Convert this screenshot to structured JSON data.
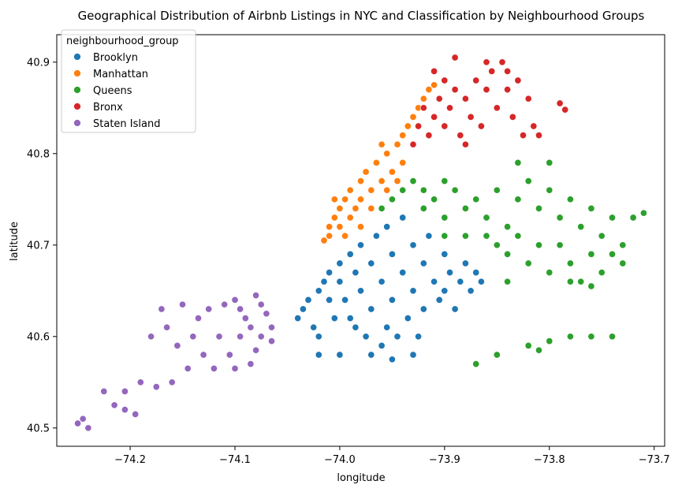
{
  "chart_data": {
    "type": "scatter",
    "title": "Geographical Distribution of Airbnb Listings in NYC and Classification by Neighbourhood Groups",
    "xlabel": "longitude",
    "ylabel": "latitude",
    "xlim": [
      -74.27,
      -73.69
    ],
    "ylim": [
      40.48,
      40.93
    ],
    "xticks": [
      -74.2,
      -74.1,
      -74.0,
      -73.9,
      -73.8,
      -73.7
    ],
    "xtick_labels": [
      "−74.2",
      "−74.1",
      "−74.0",
      "−73.9",
      "−73.8",
      "−73.7"
    ],
    "yticks": [
      40.5,
      40.6,
      40.7,
      40.8,
      40.9
    ],
    "ytick_labels": [
      "40.5",
      "40.6",
      "40.7",
      "40.8",
      "40.9"
    ],
    "grid": false,
    "legend": {
      "title": "neighbourhood_group",
      "placement": "top-left"
    },
    "series": [
      {
        "name": "Brooklyn",
        "color": "#1f77b4",
        "points": [
          [
            -74.04,
            40.62
          ],
          [
            -74.035,
            40.63
          ],
          [
            -74.03,
            40.64
          ],
          [
            -74.025,
            40.61
          ],
          [
            -74.02,
            40.65
          ],
          [
            -74.02,
            40.6
          ],
          [
            -74.015,
            40.66
          ],
          [
            -74.01,
            40.67
          ],
          [
            -74.01,
            40.64
          ],
          [
            -74.005,
            40.62
          ],
          [
            -74.0,
            40.68
          ],
          [
            -74.0,
            40.66
          ],
          [
            -73.995,
            40.64
          ],
          [
            -73.99,
            40.69
          ],
          [
            -73.99,
            40.62
          ],
          [
            -73.985,
            40.67
          ],
          [
            -73.98,
            40.7
          ],
          [
            -73.98,
            40.65
          ],
          [
            -73.975,
            40.6
          ],
          [
            -73.97,
            40.68
          ],
          [
            -73.97,
            40.63
          ],
          [
            -73.965,
            40.71
          ],
          [
            -73.96,
            40.66
          ],
          [
            -73.96,
            40.59
          ],
          [
            -73.955,
            40.72
          ],
          [
            -73.95,
            40.69
          ],
          [
            -73.95,
            40.64
          ],
          [
            -73.945,
            40.6
          ],
          [
            -73.94,
            40.73
          ],
          [
            -73.94,
            40.67
          ],
          [
            -73.935,
            40.62
          ],
          [
            -73.93,
            40.7
          ],
          [
            -73.93,
            40.65
          ],
          [
            -73.925,
            40.6
          ],
          [
            -73.92,
            40.68
          ],
          [
            -73.92,
            40.63
          ],
          [
            -73.915,
            40.71
          ],
          [
            -73.91,
            40.66
          ],
          [
            -73.905,
            40.64
          ],
          [
            -73.9,
            40.69
          ],
          [
            -73.9,
            40.65
          ],
          [
            -73.895,
            40.67
          ],
          [
            -73.89,
            40.63
          ],
          [
            -73.885,
            40.66
          ],
          [
            -73.88,
            40.68
          ],
          [
            -73.875,
            40.65
          ],
          [
            -73.87,
            40.67
          ],
          [
            -73.865,
            40.66
          ],
          [
            -74.02,
            40.58
          ],
          [
            -74.0,
            40.58
          ],
          [
            -73.97,
            40.58
          ],
          [
            -73.95,
            40.575
          ],
          [
            -73.93,
            40.58
          ],
          [
            -73.985,
            40.61
          ],
          [
            -73.955,
            40.61
          ]
        ]
      },
      {
        "name": "Manhattan",
        "color": "#ff7f0e",
        "points": [
          [
            -74.015,
            40.705
          ],
          [
            -74.01,
            40.71
          ],
          [
            -74.01,
            40.72
          ],
          [
            -74.005,
            40.73
          ],
          [
            -74.0,
            40.74
          ],
          [
            -74.0,
            40.72
          ],
          [
            -73.995,
            40.75
          ],
          [
            -73.99,
            40.73
          ],
          [
            -73.99,
            40.76
          ],
          [
            -73.985,
            40.74
          ],
          [
            -73.98,
            40.77
          ],
          [
            -73.98,
            40.75
          ],
          [
            -73.975,
            40.78
          ],
          [
            -73.97,
            40.76
          ],
          [
            -73.965,
            40.79
          ],
          [
            -73.96,
            40.77
          ],
          [
            -73.955,
            40.8
          ],
          [
            -73.95,
            40.78
          ],
          [
            -73.945,
            40.81
          ],
          [
            -73.94,
            40.79
          ],
          [
            -73.94,
            40.82
          ],
          [
            -73.935,
            40.83
          ],
          [
            -73.93,
            40.84
          ],
          [
            -73.925,
            40.85
          ],
          [
            -73.92,
            40.86
          ],
          [
            -73.915,
            40.87
          ],
          [
            -73.91,
            40.875
          ],
          [
            -73.995,
            40.71
          ],
          [
            -73.98,
            40.72
          ],
          [
            -73.97,
            40.74
          ],
          [
            -73.955,
            40.76
          ],
          [
            -73.945,
            40.77
          ],
          [
            -73.96,
            40.81
          ],
          [
            -74.005,
            40.75
          ]
        ]
      },
      {
        "name": "Queens",
        "color": "#2ca02c",
        "points": [
          [
            -73.96,
            40.74
          ],
          [
            -73.95,
            40.75
          ],
          [
            -73.94,
            40.76
          ],
          [
            -73.93,
            40.77
          ],
          [
            -73.92,
            40.76
          ],
          [
            -73.92,
            40.74
          ],
          [
            -73.91,
            40.75
          ],
          [
            -73.9,
            40.77
          ],
          [
            -73.9,
            40.73
          ],
          [
            -73.89,
            40.76
          ],
          [
            -73.88,
            40.74
          ],
          [
            -73.87,
            40.75
          ],
          [
            -73.86,
            40.73
          ],
          [
            -73.85,
            40.76
          ],
          [
            -73.84,
            40.72
          ],
          [
            -73.83,
            40.75
          ],
          [
            -73.82,
            40.77
          ],
          [
            -73.81,
            40.74
          ],
          [
            -73.8,
            40.76
          ],
          [
            -73.79,
            40.73
          ],
          [
            -73.78,
            40.75
          ],
          [
            -73.77,
            40.72
          ],
          [
            -73.76,
            40.74
          ],
          [
            -73.75,
            40.71
          ],
          [
            -73.74,
            40.73
          ],
          [
            -73.73,
            40.7
          ],
          [
            -73.73,
            40.68
          ],
          [
            -73.74,
            40.69
          ],
          [
            -73.75,
            40.67
          ],
          [
            -73.76,
            40.69
          ],
          [
            -73.77,
            40.66
          ],
          [
            -73.78,
            40.68
          ],
          [
            -73.79,
            40.7
          ],
          [
            -73.8,
            40.67
          ],
          [
            -73.81,
            40.7
          ],
          [
            -73.82,
            40.68
          ],
          [
            -73.83,
            40.71
          ],
          [
            -73.84,
            40.69
          ],
          [
            -73.85,
            40.7
          ],
          [
            -73.86,
            40.71
          ],
          [
            -73.88,
            40.71
          ],
          [
            -73.9,
            40.71
          ],
          [
            -73.84,
            40.66
          ],
          [
            -73.78,
            40.66
          ],
          [
            -73.76,
            40.655
          ],
          [
            -73.83,
            40.79
          ],
          [
            -73.8,
            40.79
          ],
          [
            -73.72,
            40.73
          ],
          [
            -73.71,
            40.735
          ],
          [
            -73.87,
            40.57
          ],
          [
            -73.85,
            40.58
          ],
          [
            -73.82,
            40.59
          ],
          [
            -73.8,
            40.595
          ],
          [
            -73.78,
            40.6
          ],
          [
            -73.76,
            40.6
          ],
          [
            -73.74,
            40.6
          ],
          [
            -73.81,
            40.585
          ]
        ]
      },
      {
        "name": "Bronx",
        "color": "#d62728",
        "points": [
          [
            -73.93,
            40.81
          ],
          [
            -73.925,
            40.83
          ],
          [
            -73.92,
            40.85
          ],
          [
            -73.915,
            40.82
          ],
          [
            -73.91,
            40.84
          ],
          [
            -73.905,
            40.86
          ],
          [
            -73.9,
            40.88
          ],
          [
            -73.9,
            40.83
          ],
          [
            -73.895,
            40.85
          ],
          [
            -73.89,
            40.87
          ],
          [
            -73.885,
            40.82
          ],
          [
            -73.88,
            40.86
          ],
          [
            -73.875,
            40.84
          ],
          [
            -73.87,
            40.88
          ],
          [
            -73.865,
            40.83
          ],
          [
            -73.86,
            40.87
          ],
          [
            -73.855,
            40.89
          ],
          [
            -73.85,
            40.85
          ],
          [
            -73.845,
            40.9
          ],
          [
            -73.84,
            40.87
          ],
          [
            -73.835,
            40.84
          ],
          [
            -73.83,
            40.88
          ],
          [
            -73.825,
            40.82
          ],
          [
            -73.82,
            40.86
          ],
          [
            -73.815,
            40.83
          ],
          [
            -73.81,
            40.82
          ],
          [
            -73.89,
            40.905
          ],
          [
            -73.86,
            40.9
          ],
          [
            -73.84,
            40.89
          ],
          [
            -73.79,
            40.855
          ],
          [
            -73.785,
            40.848
          ],
          [
            -73.88,
            40.81
          ],
          [
            -73.91,
            40.89
          ]
        ]
      },
      {
        "name": "Staten Island",
        "color": "#9467bd",
        "points": [
          [
            -74.25,
            40.505
          ],
          [
            -74.245,
            40.51
          ],
          [
            -74.24,
            40.5
          ],
          [
            -74.225,
            40.54
          ],
          [
            -74.215,
            40.525
          ],
          [
            -74.205,
            40.52
          ],
          [
            -74.205,
            40.54
          ],
          [
            -74.195,
            40.515
          ],
          [
            -74.19,
            40.55
          ],
          [
            -74.18,
            40.6
          ],
          [
            -74.175,
            40.545
          ],
          [
            -74.17,
            40.63
          ],
          [
            -74.165,
            40.61
          ],
          [
            -74.16,
            40.55
          ],
          [
            -74.155,
            40.59
          ],
          [
            -74.15,
            40.635
          ],
          [
            -74.145,
            40.565
          ],
          [
            -74.14,
            40.6
          ],
          [
            -74.135,
            40.62
          ],
          [
            -74.13,
            40.58
          ],
          [
            -74.125,
            40.63
          ],
          [
            -74.12,
            40.565
          ],
          [
            -74.115,
            40.6
          ],
          [
            -74.11,
            40.635
          ],
          [
            -74.105,
            40.58
          ],
          [
            -74.1,
            40.64
          ],
          [
            -74.095,
            40.6
          ],
          [
            -74.09,
            40.62
          ],
          [
            -74.085,
            40.57
          ],
          [
            -74.08,
            40.645
          ],
          [
            -74.075,
            40.6
          ],
          [
            -74.07,
            40.625
          ],
          [
            -74.065,
            40.61
          ],
          [
            -74.1,
            40.565
          ],
          [
            -74.095,
            40.63
          ],
          [
            -74.08,
            40.585
          ],
          [
            -74.085,
            40.61
          ],
          [
            -74.075,
            40.635
          ],
          [
            -74.065,
            40.595
          ]
        ]
      }
    ]
  }
}
